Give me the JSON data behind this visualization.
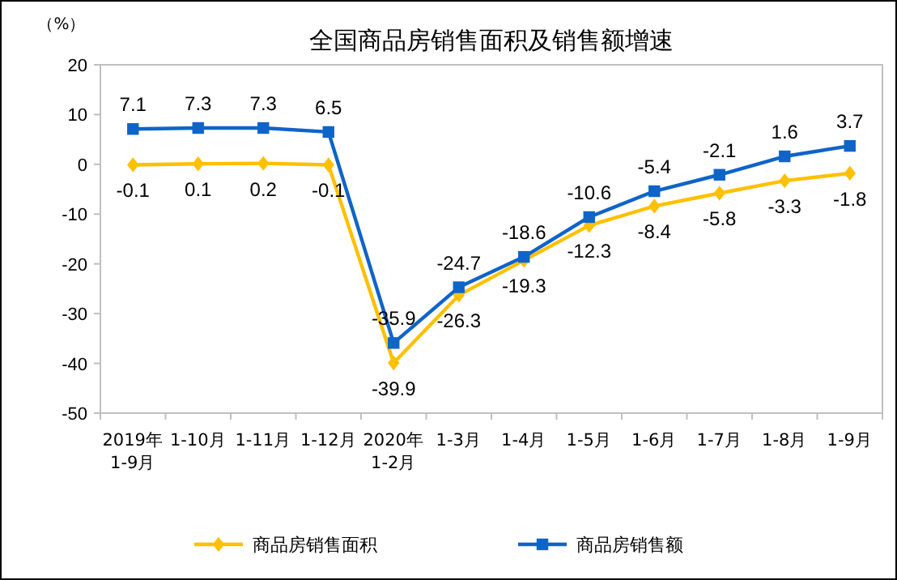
{
  "chart_data": {
    "type": "line",
    "title": "全国商品房销售面积及销售额增速",
    "ylabel": "（%）",
    "categories": [
      "2019年\n1-9月",
      "1-10月",
      "1-11月",
      "1-12月",
      "2020年\n1-2月",
      "1-3月",
      "1-4月",
      "1-5月",
      "1-6月",
      "1-7月",
      "1-8月",
      "1-9月"
    ],
    "series": [
      {
        "name": "商品房销售面积",
        "color": "#ffc000",
        "marker": "diamond",
        "values": [
          -0.1,
          0.1,
          0.2,
          -0.1,
          -39.9,
          -26.3,
          -19.3,
          -12.3,
          -8.4,
          -5.8,
          -3.3,
          -1.8
        ]
      },
      {
        "name": "商品房销售额",
        "color": "#0f64c8",
        "marker": "square",
        "values": [
          7.1,
          7.3,
          7.3,
          6.5,
          -35.9,
          -24.7,
          -18.6,
          -10.6,
          -5.4,
          -2.1,
          1.6,
          3.7
        ]
      }
    ],
    "ylim": [
      -50,
      20
    ],
    "yticks": [
      -50,
      -40,
      -30,
      -20,
      -10,
      0,
      10,
      20
    ],
    "grid": false,
    "legend": "bottom",
    "data_labels": true
  }
}
